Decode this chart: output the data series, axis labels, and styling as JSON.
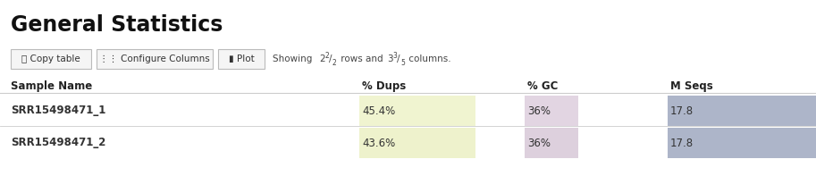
{
  "title": "General Statistics",
  "buttons": [
    "⎘ Copy table",
    "⋮⋮ Configure Columns",
    "▮ Plot"
  ],
  "columns": [
    "Sample Name",
    "% Dups",
    "% GC",
    "M Seqs"
  ],
  "rows": [
    {
      "name": "SRR15498471_1",
      "dups": "45.4%",
      "gc": "36%",
      "mseqs": "17.8",
      "dups_bg": "#f0f4d0",
      "gc_bg": "#e2d5e2",
      "mseqs_bg": "#adb5c9"
    },
    {
      "name": "SRR15498471_2",
      "dups": "43.6%",
      "gc": "36%",
      "mseqs": "17.8",
      "dups_bg": "#eef2cc",
      "gc_bg": "#ddd0dd",
      "mseqs_bg": "#adb5c9"
    }
  ],
  "bg_color": "#ffffff",
  "header_color": "#222222",
  "row_text_color": "#333333",
  "border_color": "#cccccc",
  "button_bg": "#f5f5f5",
  "button_border": "#bbbbbb"
}
